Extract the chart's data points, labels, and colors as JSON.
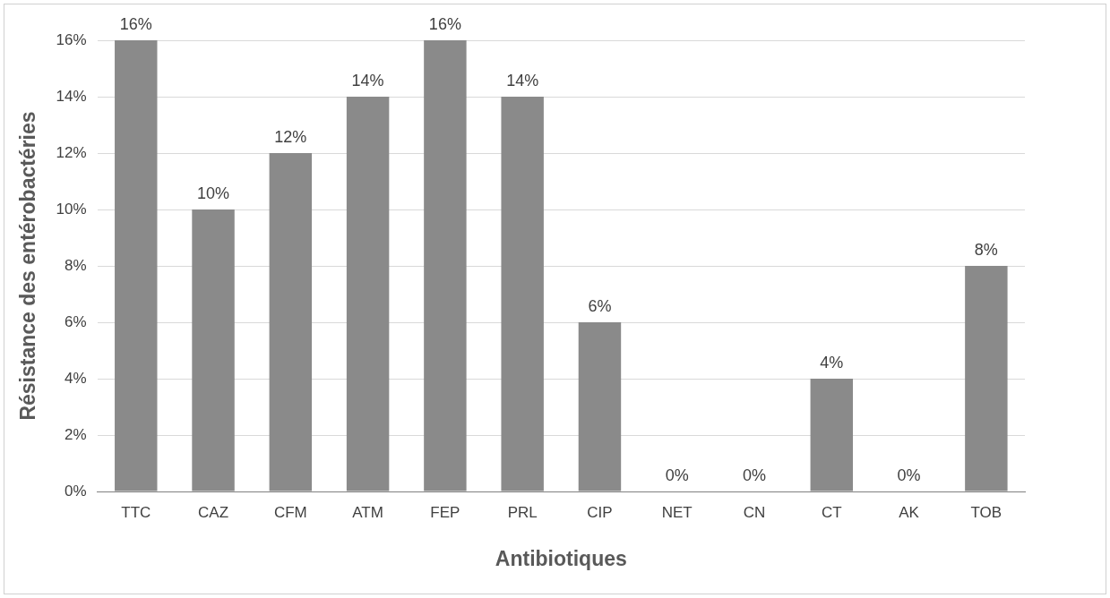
{
  "chart_data": {
    "type": "bar",
    "xlabel": "Antibiotiques",
    "ylabel": "Résistance des entérobactéries",
    "categories": [
      "TTC",
      "CAZ",
      "CFM",
      "ATM",
      "FEP",
      "PRL",
      "CIP",
      "NET",
      "CN",
      "CT",
      "AK",
      "TOB"
    ],
    "values": [
      16,
      10,
      12,
      14,
      16,
      14,
      6,
      0,
      0,
      4,
      0,
      8
    ],
    "value_labels": [
      "16%",
      "10%",
      "12%",
      "14%",
      "16%",
      "14%",
      "6%",
      "0%",
      "0%",
      "4%",
      "0%",
      "8%"
    ],
    "color": "#8a8a8a",
    "ylim": [
      0,
      16
    ],
    "yticks": [
      {
        "value": 0,
        "label": "0%"
      },
      {
        "value": 2,
        "label": "2%"
      },
      {
        "value": 4,
        "label": "4%"
      },
      {
        "value": 6,
        "label": "6%"
      },
      {
        "value": 8,
        "label": "8%"
      },
      {
        "value": 10,
        "label": "10%"
      },
      {
        "value": 12,
        "label": "12%"
      },
      {
        "value": 14,
        "label": "14%"
      },
      {
        "value": 16,
        "label": "16%"
      }
    ],
    "grid": "y",
    "legend": false
  }
}
